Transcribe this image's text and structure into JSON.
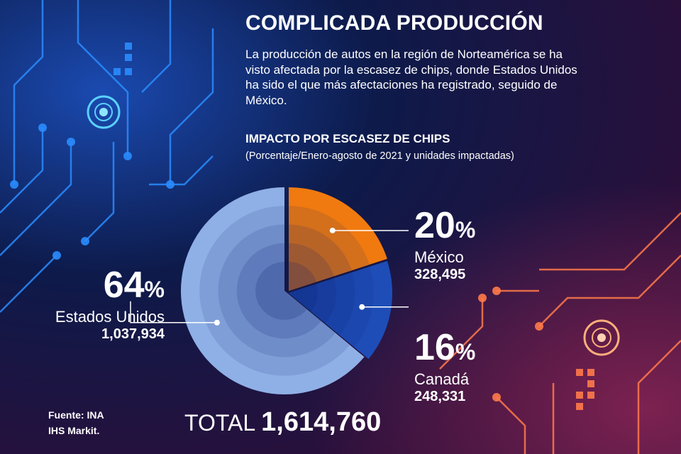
{
  "header": {
    "title": "COMPLICADA PRODUCCIÓN",
    "description": "La producción de autos en la región de Norteamérica se ha visto afectada por la escasez de chips, donde Estados Unidos ha sido el que más afectaciones ha registrado, seguido de México.",
    "chart_title": "IMPACTO POR ESCASEZ DE CHIPS",
    "chart_subtitle": "(Porcentaje/Enero-agosto de 2021 y unidades impactadas)"
  },
  "chart_data": {
    "type": "pie",
    "title": "IMPACTO POR ESCASEZ DE CHIPS",
    "subtitle": "(Porcentaje/Enero-agosto de 2021 y unidades impactadas)",
    "slices": [
      {
        "name": "México",
        "percent": 20,
        "units": "328,495",
        "color": "#f07a10"
      },
      {
        "name": "Canadá",
        "percent": 16,
        "units": "248,331",
        "color": "#1e4db8"
      },
      {
        "name": "Estados Unidos",
        "percent": 64,
        "units": "1,037,934",
        "color": "#8fb0e6"
      }
    ],
    "percent_sign": "%",
    "total_label": "TOTAL",
    "total_value": "1,614,760"
  },
  "footer": {
    "source_line1": "Fuente: INA",
    "source_line2": "IHS Markit."
  },
  "colors": {
    "background": "#0a1230",
    "circuit_blue": "#2a8cff",
    "circuit_orange": "#ff7a4a",
    "text": "#ffffff"
  }
}
